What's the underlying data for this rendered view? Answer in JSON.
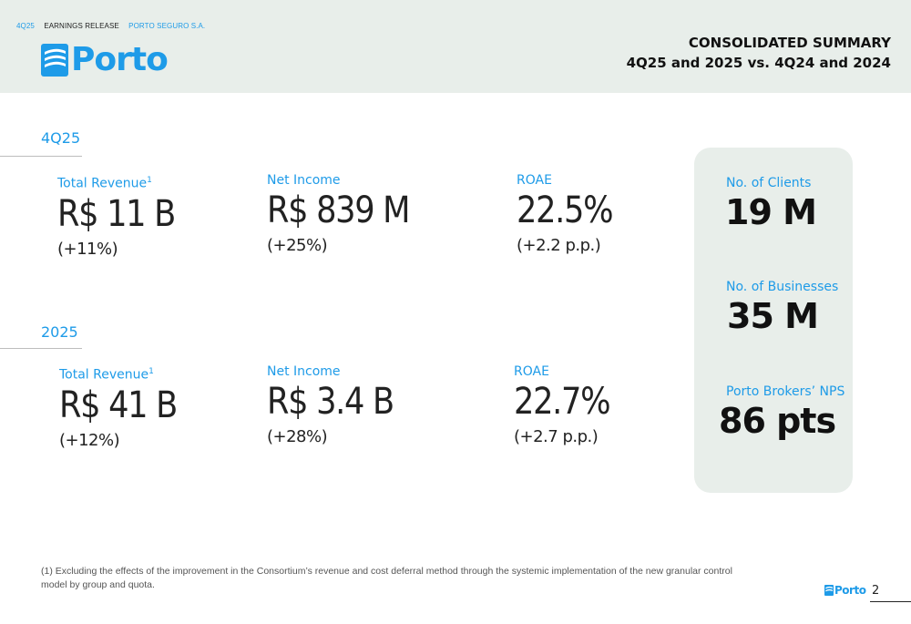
{
  "header": {
    "meta": [
      "4Q25",
      "EARNINGS RELEASE",
      "PORTO SEGURO S.A."
    ],
    "logo_text": "Porto",
    "title_line1": "CONSOLIDATED SUMMARY",
    "title_line2": "4Q25 and 2025 vs. 4Q24 and 2024"
  },
  "sections": [
    {
      "label": "4Q25",
      "kpis": [
        {
          "label": "Total Revenue",
          "sup": "1",
          "value": "R$ 11 B",
          "change": "(+11%)"
        },
        {
          "label": "Net Income",
          "sup": "",
          "value": "R$ 839 M",
          "change": "(+25%)"
        },
        {
          "label": "ROAE",
          "sup": "",
          "value": "22.5%",
          "change": "(+2.2 p.p.)"
        }
      ]
    },
    {
      "label": "2025",
      "kpis": [
        {
          "label": "Total Revenue",
          "sup": "1",
          "value": "R$ 41 B",
          "change": "(+12%)"
        },
        {
          "label": "Net Income",
          "sup": "",
          "value": "R$ 3.4 B",
          "change": "(+28%)"
        },
        {
          "label": "ROAE",
          "sup": "",
          "value": "22.7%",
          "change": "(+2.7 p.p.)"
        }
      ]
    }
  ],
  "side_card": [
    {
      "label": "No. of Clients",
      "value": "19 M"
    },
    {
      "label": "No. of Businesses",
      "value": "35 M"
    },
    {
      "label": "Porto Brokers’ NPS",
      "value": "86 pts"
    }
  ],
  "footnote": "(1) Excluding the effects of the improvement in the Consortium’s revenue and cost deferral method through the systemic implementation of the new granular control model by group and quota.",
  "footer": {
    "logo_text": "Porto",
    "page_number": "2"
  },
  "colors": {
    "accent": "#1e9be8",
    "header_bg": "#e8eeea",
    "card_bg": "#e8eeea",
    "text": "#222222"
  }
}
